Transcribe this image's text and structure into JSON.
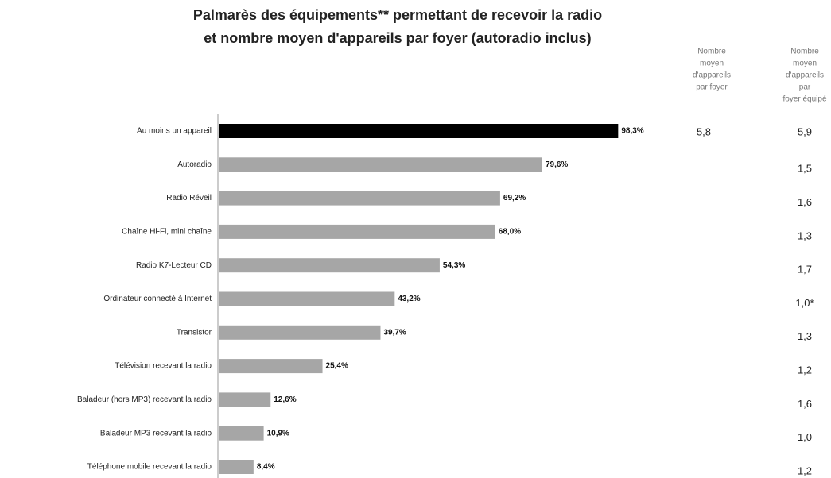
{
  "chart_data": {
    "type": "bar",
    "orientation": "horizontal",
    "title": [
      "Palmarès des équipements** permettant de recevoir la radio",
      "et nombre moyen d'appareils par foyer (autoradio inclus)"
    ],
    "categories": [
      "Au moins un appareil",
      "Autoradio",
      "Radio Réveil",
      "Chaîne Hi-Fi, mini chaîne",
      "Radio K7-Lecteur CD",
      "Ordinateur connecté à Internet",
      "Transistor",
      "Télévision recevant la radio",
      "Baladeur (hors MP3) recevant la radio",
      "Baladeur MP3 recevant la radio",
      "Téléphone mobile recevant la radio"
    ],
    "values": [
      98.3,
      79.6,
      69.2,
      68.0,
      54.3,
      43.2,
      39.7,
      25.4,
      12.6,
      10.9,
      8.4
    ],
    "value_labels": [
      "98,3%",
      "79,6%",
      "69,2%",
      "68,0%",
      "54,3%",
      "43,2%",
      "39,7%",
      "25,4%",
      "12,6%",
      "10,9%",
      "8,4%"
    ],
    "colors": [
      "#000000",
      "#a6a6a6",
      "#a6a6a6",
      "#a6a6a6",
      "#a6a6a6",
      "#a6a6a6",
      "#a6a6a6",
      "#a6a6a6",
      "#a6a6a6",
      "#a6a6a6",
      "#a6a6a6"
    ],
    "columns": [
      {
        "header": [
          "Nombre",
          "moyen",
          "d'appareils",
          "par foyer"
        ],
        "values": [
          "5,8",
          null,
          null,
          null,
          null,
          null,
          null,
          null,
          null,
          null,
          null
        ]
      },
      {
        "header": [
          "Nombre",
          "moyen",
          "d'appareils",
          "par",
          "foyer équipé"
        ],
        "values": [
          "5,9",
          "1,5",
          "1,6",
          "1,3",
          "1,7",
          "1,0*",
          "1,3",
          "1,2",
          "1,6",
          "1,0",
          "1,2"
        ]
      }
    ]
  }
}
